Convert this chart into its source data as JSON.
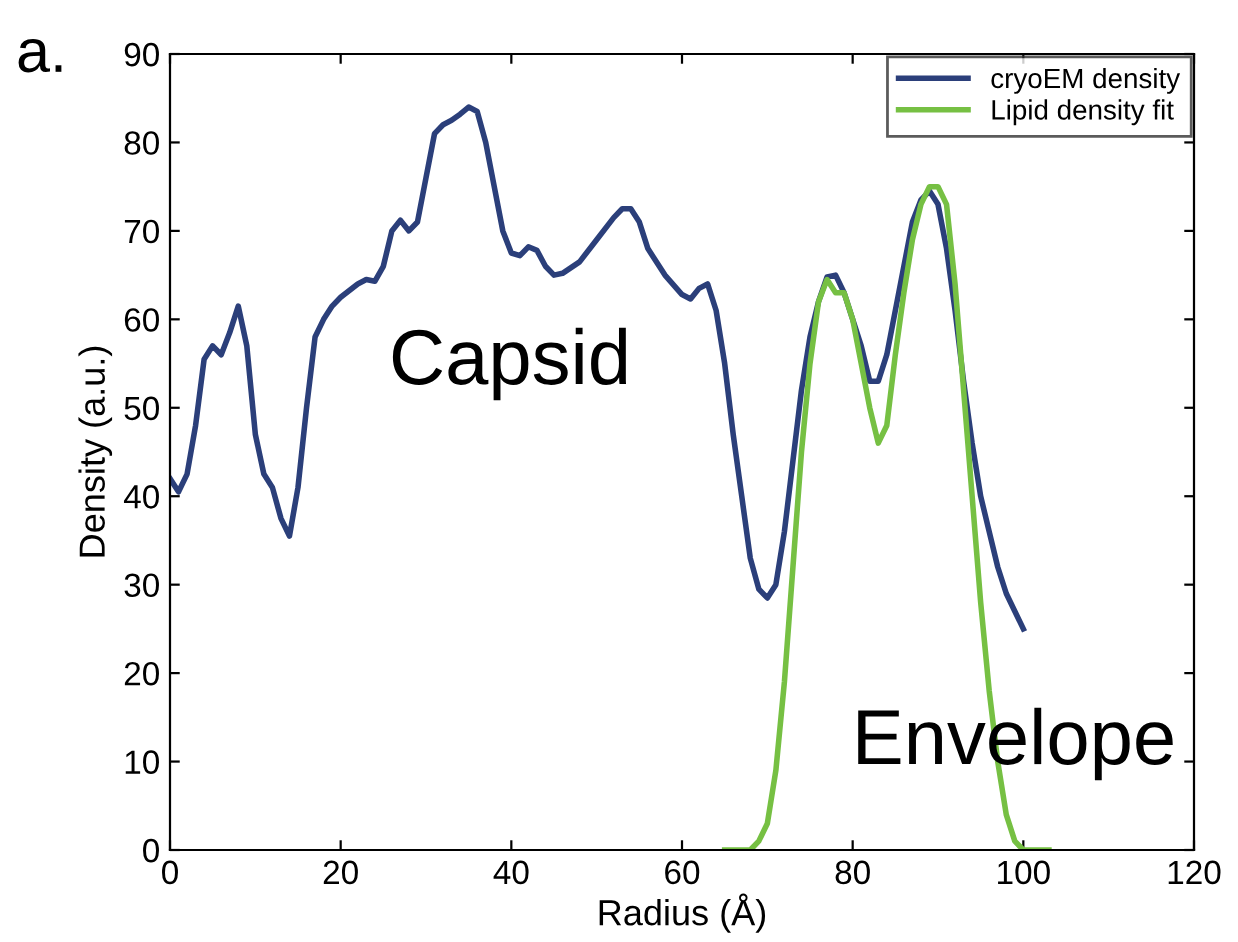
{
  "chart_data": {
    "type": "line",
    "xlabel": "Radius (Å)",
    "ylabel": "Density (a.u.)",
    "annotations": [
      "a.",
      "Capsid",
      "Envelope"
    ],
    "xlim": [
      0,
      120
    ],
    "ylim": [
      0,
      90
    ],
    "xticks": [
      0,
      20,
      40,
      60,
      80,
      100,
      120
    ],
    "yticks": [
      0,
      10,
      20,
      30,
      40,
      50,
      60,
      70,
      80,
      90
    ],
    "grid": false,
    "legend": "top right",
    "marker": "none",
    "line_style": "solid",
    "series": [
      {
        "name": "cryoEM density",
        "color": "#2b3f7a",
        "x": [
          0,
          1,
          2,
          3,
          4,
          5,
          6,
          7,
          8,
          9,
          10,
          11,
          12,
          13,
          14,
          15,
          16,
          17,
          18,
          19,
          20,
          22,
          23,
          24,
          25,
          26,
          27,
          28,
          29,
          30,
          31,
          32,
          33,
          34,
          35,
          36,
          37,
          38,
          39,
          40,
          41,
          42,
          43,
          44,
          45,
          46,
          48,
          50,
          52,
          53,
          54,
          55,
          56,
          58,
          60,
          61,
          62,
          63,
          64,
          65,
          66,
          67,
          68,
          69,
          70,
          71,
          72,
          73,
          74,
          75,
          76,
          77,
          78,
          79,
          80,
          81,
          82,
          83,
          84,
          85,
          86,
          87,
          88,
          89,
          90,
          91,
          92,
          93,
          94,
          95,
          96,
          97,
          98,
          99,
          100
        ],
        "values": [
          42,
          40.5,
          42.5,
          48,
          55.5,
          57,
          56,
          58.5,
          61.5,
          57,
          47,
          42.5,
          41,
          37.5,
          35.5,
          41,
          50,
          58,
          60,
          61.5,
          62.5,
          64,
          64.5,
          64.3,
          66,
          70,
          71.2,
          70,
          71,
          76,
          81,
          82,
          82.5,
          83.2,
          84,
          83.5,
          80,
          75,
          70,
          67.5,
          67.2,
          68.2,
          67.8,
          66,
          65,
          65.2,
          66.5,
          69,
          71.5,
          72.5,
          72.5,
          71,
          68,
          65,
          62.8,
          62.3,
          63.5,
          64,
          61,
          55,
          47,
          40,
          33,
          29.5,
          28.5,
          30,
          36,
          44,
          52,
          58,
          62,
          64.8,
          65,
          63,
          60,
          57,
          53,
          53,
          56,
          61,
          66,
          71,
          73.5,
          74.5,
          73,
          68,
          61,
          53,
          46,
          40,
          36,
          32,
          29,
          27,
          25
        ]
      },
      {
        "name": "Lipid density fit",
        "color": "#76c043",
        "x": [
          65,
          67,
          68,
          69,
          70,
          71,
          72,
          73,
          74,
          75,
          76,
          77,
          78,
          79,
          80,
          81,
          82,
          83,
          84,
          85,
          86,
          87,
          88,
          89,
          90,
          91,
          92,
          93,
          94,
          95,
          96,
          97,
          98,
          99,
          100,
          103
        ],
        "values": [
          0,
          0,
          0,
          1,
          3,
          9,
          19,
          32,
          45,
          55,
          62,
          64.5,
          63,
          63,
          60,
          55,
          50,
          46,
          48,
          56,
          63,
          69,
          73,
          75,
          75,
          73,
          64,
          52,
          40,
          28,
          18,
          10,
          4,
          1,
          0,
          0
        ]
      }
    ]
  }
}
